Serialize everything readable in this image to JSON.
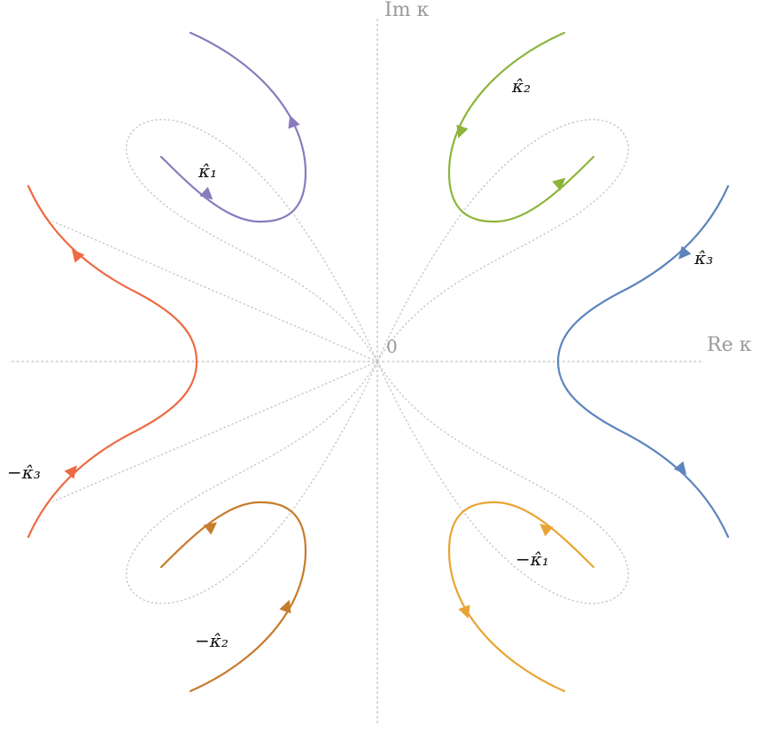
{
  "axes": {
    "x_label": "Re κ",
    "y_label": "Im κ",
    "origin_label": "0"
  },
  "curves": [
    {
      "id": "k1",
      "label": "κ̂₁",
      "color": "#8a7bbd"
    },
    {
      "id": "k2",
      "label": "κ̂₂",
      "color": "#8db43a"
    },
    {
      "id": "k3",
      "label": "κ̂₃",
      "color": "#5d84bc"
    },
    {
      "id": "mk1",
      "label": "−κ̂₁",
      "color": "#e8a534"
    },
    {
      "id": "mk2",
      "label": "−κ̂₂",
      "color": "#c77b2c"
    },
    {
      "id": "mk3",
      "label": "−κ̂₃",
      "color": "#ee6a43"
    }
  ]
}
